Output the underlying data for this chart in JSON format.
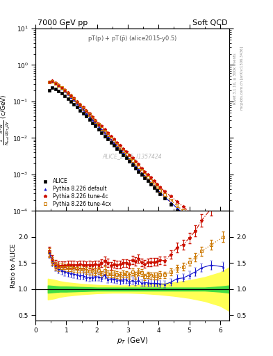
{
  "title_left": "7000 GeV pp",
  "title_right": "Soft QCD",
  "plot_title": "pT(p) + pT($\\bar{p}$) (alice2015-y0.5)",
  "watermark": "ALICE_2015_I1357424",
  "ylabel_main": "$\\frac{1}{N_{\\mathrm{inal}}}\\frac{d^2N}{dp_{T_d}dy}$ (c/GeV)",
  "ylabel_ratio": "Ratio to ALICE",
  "xlabel": "$p_T$ (GeV)",
  "right_label1": "Rivet 3.1.10, ≥ 300k events",
  "right_label2": "mcplots.cern.ch [arXiv:1306.3436]",
  "xlim": [
    0,
    6.3
  ],
  "ylim_main": [
    0.0001,
    10
  ],
  "ylim_ratio": [
    0.4,
    2.5
  ],
  "alice_pt": [
    0.45,
    0.55,
    0.65,
    0.75,
    0.85,
    0.95,
    1.05,
    1.15,
    1.25,
    1.35,
    1.45,
    1.55,
    1.65,
    1.75,
    1.85,
    1.95,
    2.05,
    2.15,
    2.25,
    2.35,
    2.45,
    2.55,
    2.65,
    2.75,
    2.85,
    2.95,
    3.05,
    3.15,
    3.25,
    3.35,
    3.45,
    3.55,
    3.65,
    3.75,
    3.85,
    3.95,
    4.05,
    4.2,
    4.4,
    4.6,
    4.8,
    5.0,
    5.2,
    5.4,
    5.7,
    6.1
  ],
  "alice_y": [
    0.2,
    0.235,
    0.22,
    0.195,
    0.168,
    0.143,
    0.12,
    0.1,
    0.083,
    0.069,
    0.057,
    0.047,
    0.039,
    0.032,
    0.026,
    0.021,
    0.017,
    0.014,
    0.011,
    0.0093,
    0.0076,
    0.0062,
    0.0051,
    0.0042,
    0.0034,
    0.0028,
    0.0023,
    0.0018,
    0.0015,
    0.0012,
    0.00099,
    0.00081,
    0.00066,
    0.00054,
    0.00044,
    0.00036,
    0.00029,
    0.00022,
    0.00015,
    0.0001,
    7e-05,
    4.8e-05,
    3.3e-05,
    2.2e-05,
    1.3e-05,
    7e-06
  ],
  "pythia_default_pt": [
    0.45,
    0.55,
    0.65,
    0.75,
    0.85,
    0.95,
    1.05,
    1.15,
    1.25,
    1.35,
    1.45,
    1.55,
    1.65,
    1.75,
    1.85,
    1.95,
    2.05,
    2.15,
    2.25,
    2.35,
    2.45,
    2.55,
    2.65,
    2.75,
    2.85,
    2.95,
    3.05,
    3.15,
    3.25,
    3.35,
    3.45,
    3.55,
    3.65,
    3.75,
    3.85,
    3.95,
    4.05,
    4.2,
    4.4,
    4.6,
    4.8,
    5.0,
    5.2,
    5.4,
    5.7,
    6.1
  ],
  "pythia_default_y": [
    0.34,
    0.36,
    0.315,
    0.27,
    0.228,
    0.191,
    0.158,
    0.13,
    0.107,
    0.088,
    0.072,
    0.059,
    0.048,
    0.039,
    0.032,
    0.026,
    0.021,
    0.017,
    0.014,
    0.011,
    0.0091,
    0.0074,
    0.006,
    0.0049,
    0.004,
    0.0033,
    0.0026,
    0.0021,
    0.0017,
    0.0014,
    0.0011,
    0.00091,
    0.00074,
    0.0006,
    0.00049,
    0.0004,
    0.00032,
    0.00024,
    0.00017,
    0.00012,
    8.5e-05,
    6.1e-05,
    4.4e-05,
    3.1e-05,
    1.9e-05,
    1e-05
  ],
  "pythia_4c_pt": [
    0.45,
    0.55,
    0.65,
    0.75,
    0.85,
    0.95,
    1.05,
    1.15,
    1.25,
    1.35,
    1.45,
    1.55,
    1.65,
    1.75,
    1.85,
    1.95,
    2.05,
    2.15,
    2.25,
    2.35,
    2.45,
    2.55,
    2.65,
    2.75,
    2.85,
    2.95,
    3.05,
    3.15,
    3.25,
    3.35,
    3.45,
    3.55,
    3.65,
    3.75,
    3.85,
    3.95,
    4.05,
    4.2,
    4.4,
    4.6,
    4.8,
    5.0,
    5.2,
    5.4,
    5.7,
    6.1
  ],
  "pythia_4c_y": [
    0.345,
    0.37,
    0.325,
    0.284,
    0.244,
    0.208,
    0.176,
    0.147,
    0.122,
    0.101,
    0.084,
    0.069,
    0.057,
    0.047,
    0.038,
    0.031,
    0.025,
    0.021,
    0.017,
    0.014,
    0.011,
    0.0092,
    0.0075,
    0.0062,
    0.0051,
    0.0042,
    0.0034,
    0.0028,
    0.0023,
    0.0019,
    0.0015,
    0.0012,
    0.001,
    0.00082,
    0.00067,
    0.00055,
    0.00045,
    0.00034,
    0.00025,
    0.00018,
    0.00013,
    9.5e-05,
    7e-05,
    5.1e-05,
    3.3e-05,
    2e-05
  ],
  "pythia_4cx_pt": [
    0.45,
    0.55,
    0.65,
    0.75,
    0.85,
    0.95,
    1.05,
    1.15,
    1.25,
    1.35,
    1.45,
    1.55,
    1.65,
    1.75,
    1.85,
    1.95,
    2.05,
    2.15,
    2.25,
    2.35,
    2.45,
    2.55,
    2.65,
    2.75,
    2.85,
    2.95,
    3.05,
    3.15,
    3.25,
    3.35,
    3.45,
    3.55,
    3.65,
    3.75,
    3.85,
    3.95,
    4.05,
    4.2,
    4.4,
    4.6,
    4.8,
    5.0,
    5.2,
    5.4,
    5.7,
    6.1
  ],
  "pythia_4cx_y": [
    0.34,
    0.362,
    0.318,
    0.277,
    0.238,
    0.202,
    0.17,
    0.141,
    0.116,
    0.096,
    0.079,
    0.065,
    0.053,
    0.043,
    0.035,
    0.028,
    0.023,
    0.018,
    0.015,
    0.012,
    0.0098,
    0.008,
    0.0065,
    0.0053,
    0.0044,
    0.0036,
    0.0029,
    0.0024,
    0.0019,
    0.0016,
    0.0013,
    0.001,
    0.00084,
    0.00068,
    0.00055,
    0.00045,
    0.00037,
    0.00028,
    0.0002,
    0.00014,
    0.0001,
    7.3e-05,
    5.3e-05,
    3.8e-05,
    2.4e-05,
    1.4e-05
  ],
  "green_band_x": [
    0.4,
    0.6,
    0.8,
    1.0,
    1.5,
    2.0,
    2.5,
    3.0,
    3.5,
    4.0,
    4.5,
    5.0,
    5.5,
    6.0,
    6.3
  ],
  "green_band_lo": [
    0.93,
    0.94,
    0.95,
    0.95,
    0.96,
    0.97,
    0.97,
    0.97,
    0.97,
    0.97,
    0.97,
    0.97,
    0.97,
    0.95,
    0.93
  ],
  "green_band_hi": [
    1.07,
    1.06,
    1.05,
    1.05,
    1.04,
    1.03,
    1.03,
    1.03,
    1.03,
    1.03,
    1.03,
    1.03,
    1.03,
    1.05,
    1.07
  ],
  "yellow_band_x": [
    0.4,
    0.6,
    0.8,
    1.0,
    1.5,
    2.0,
    2.5,
    3.0,
    3.5,
    4.0,
    4.5,
    5.0,
    5.5,
    6.0,
    6.3
  ],
  "yellow_band_lo": [
    0.8,
    0.82,
    0.85,
    0.87,
    0.9,
    0.92,
    0.93,
    0.93,
    0.92,
    0.9,
    0.87,
    0.83,
    0.77,
    0.68,
    0.58
  ],
  "yellow_band_hi": [
    1.2,
    1.18,
    1.15,
    1.13,
    1.1,
    1.08,
    1.07,
    1.07,
    1.08,
    1.1,
    1.13,
    1.17,
    1.23,
    1.32,
    1.42
  ],
  "color_alice": "#000000",
  "color_default": "#1111cc",
  "color_4c": "#cc1100",
  "color_4cx": "#cc7700"
}
